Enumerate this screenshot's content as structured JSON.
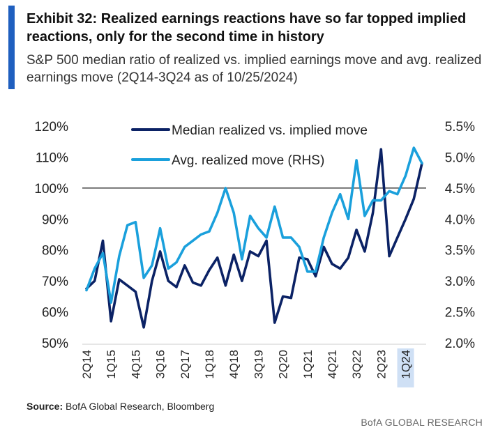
{
  "header": {
    "title": "Exhibit 32: Realized earnings reactions have so far topped implied reactions, only for the second time in history",
    "subtitle": "S&P 500 median ratio of realized vs. implied earnings move and avg. realized earnings move (2Q14-3Q24 as of 10/25/2024)"
  },
  "footer": {
    "source_label": "Source:",
    "source_text": "BofA Global Research, Bloomberg",
    "brand": "BofA GLOBAL RESEARCH"
  },
  "colors": {
    "accent": "#1f5fbf",
    "median_series": "#0b2265",
    "avg_series": "#1aa0dc",
    "highlight_tick": "#cfe0f5",
    "reference_line": "#222222"
  },
  "chart_data": {
    "type": "line",
    "title": "Exhibit 32: Realized earnings reactions have so far topped implied reactions, only for the second time in history",
    "x": [
      "2Q14",
      "3Q14",
      "4Q14",
      "1Q15",
      "2Q15",
      "3Q15",
      "4Q15",
      "1Q16",
      "2Q16",
      "3Q16",
      "4Q16",
      "1Q17",
      "2Q17",
      "3Q17",
      "4Q17",
      "1Q18",
      "2Q18",
      "3Q18",
      "4Q18",
      "1Q19",
      "2Q19",
      "3Q19",
      "4Q19",
      "1Q20",
      "2Q20",
      "3Q20",
      "4Q20",
      "1Q21",
      "2Q21",
      "3Q21",
      "4Q21",
      "1Q22",
      "2Q22",
      "3Q22",
      "4Q22",
      "1Q23",
      "2Q23",
      "3Q23",
      "4Q23",
      "1Q24",
      "2Q24",
      "3Q24"
    ],
    "x_tick_labels": [
      "2Q14",
      "1Q15",
      "4Q15",
      "3Q16",
      "2Q17",
      "1Q18",
      "4Q18",
      "3Q19",
      "2Q20",
      "1Q21",
      "4Q21",
      "3Q22",
      "2Q23",
      "1Q24"
    ],
    "highlighted_tick": "1Q24",
    "reference_line": {
      "axis": "left",
      "value": 100
    },
    "left_axis": {
      "ylim": [
        50,
        120
      ],
      "ticks": [
        "50%",
        "60%",
        "70%",
        "80%",
        "90%",
        "100%",
        "110%",
        "120%"
      ]
    },
    "right_axis": {
      "ylim": [
        2.0,
        5.5
      ],
      "ticks": [
        "2.0%",
        "2.5%",
        "3.0%",
        "3.5%",
        "4.0%",
        "4.5%",
        "5.0%",
        "5.5%"
      ]
    },
    "legend": {
      "placement": "top-center"
    },
    "series": [
      {
        "name": "Median realized vs. implied move",
        "axis": "left",
        "values": [
          67.5,
          70,
          83,
          57,
          70.5,
          68.5,
          66.5,
          55,
          70,
          79.5,
          70,
          68,
          75,
          69.5,
          68.5,
          73.5,
          77.5,
          68.5,
          78.5,
          70,
          79.5,
          78,
          83,
          56.5,
          65,
          64.5,
          77.5,
          77,
          71.5,
          81,
          75.5,
          74,
          77.5,
          86.5,
          79.5,
          92,
          112.5,
          78,
          84,
          90,
          96.5,
          108
        ]
      },
      {
        "name": "Avg. realized move (RHS)",
        "axis": "right",
        "values": [
          2.85,
          3.2,
          3.45,
          2.65,
          3.4,
          3.9,
          3.95,
          3.05,
          3.25,
          3.85,
          3.2,
          3.3,
          3.55,
          3.65,
          3.75,
          3.8,
          4.1,
          4.5,
          4.1,
          3.35,
          4.05,
          3.85,
          3.7,
          4.2,
          3.7,
          3.7,
          3.55,
          3.15,
          3.15,
          3.7,
          4.1,
          4.4,
          4.0,
          4.95,
          4.05,
          4.3,
          4.3,
          4.45,
          4.4,
          4.7,
          5.15,
          4.9
        ]
      }
    ]
  }
}
